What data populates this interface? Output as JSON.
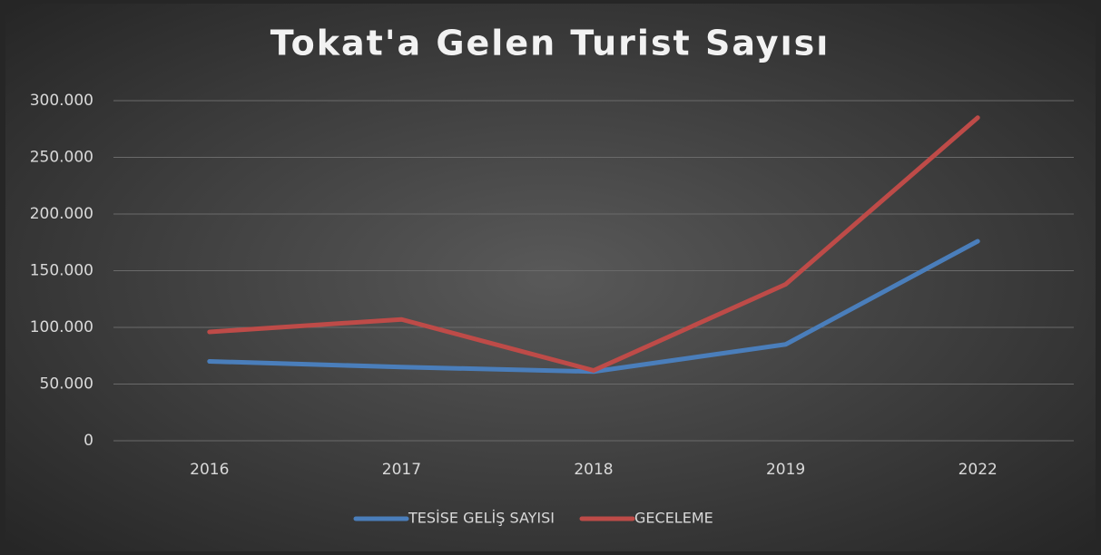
{
  "chart_data": {
    "type": "line",
    "title": "Tokat'a Gelen Turist Sayısı",
    "categories": [
      "2016",
      "2017",
      "2018",
      "2019",
      "2022"
    ],
    "series": [
      {
        "name": "TESİSE GELİŞ SAYISI",
        "color": "#4a7ebb",
        "values": [
          70000,
          65000,
          61000,
          85000,
          176000
        ]
      },
      {
        "name": "GECELEME",
        "color": "#be4b48",
        "values": [
          96000,
          107000,
          62000,
          138000,
          285000
        ]
      }
    ],
    "ylim": [
      0,
      300000
    ],
    "yticks": [
      0,
      {
        "value": 50000,
        "label": "50.000"
      },
      {
        "value": 100000,
        "label": "100.000"
      },
      {
        "value": 150000,
        "label": "150.000"
      },
      {
        "value": 200000,
        "label": "200.000"
      },
      {
        "value": 250000,
        "label": "250.000"
      },
      {
        "value": 300000,
        "label": "300.000"
      }
    ],
    "grid": true,
    "legend": "bottom"
  }
}
